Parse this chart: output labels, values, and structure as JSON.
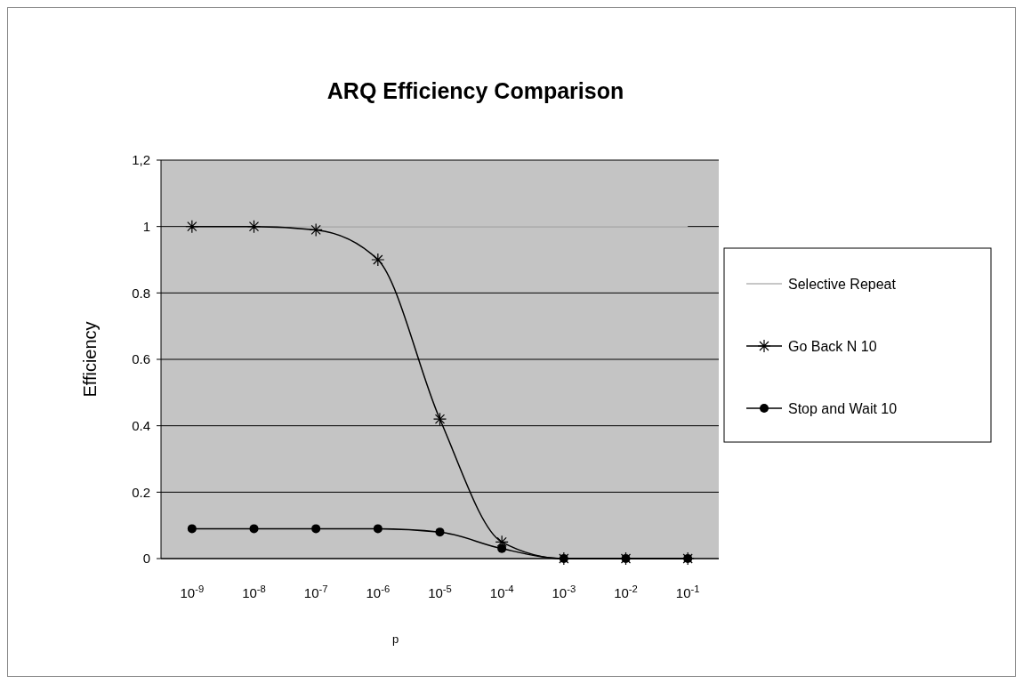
{
  "chart_data": {
    "type": "line",
    "title": "ARQ Efficiency Comparison",
    "xlabel": "p",
    "ylabel": "Efficiency",
    "categories": [
      "10$^{-9}$",
      "10$^{-8}$",
      "10$^{-7}$",
      "10$^{-6}$",
      "10$^{-5}$",
      "10$^{-4}$",
      "10$^{-3}$",
      "10$^{-2}$",
      "10$^{-1}$"
    ],
    "ylim": [
      0,
      1.2
    ],
    "yticks": [
      0,
      0.2,
      0.4,
      0.6,
      0.8,
      1,
      {
        "value": 1.2,
        "label": "1,2"
      }
    ],
    "grid": "y",
    "legend": "right",
    "series": [
      {
        "name": "Selective Repeat",
        "color": "#b4b4b4",
        "marker": "none",
        "values": [
          1,
          1,
          1,
          1,
          1,
          1,
          1,
          1,
          1
        ]
      },
      {
        "name": "Go Back N 10",
        "color": "#000000",
        "marker": "cross",
        "values": [
          1,
          1,
          0.99,
          0.9,
          0.42,
          0.05,
          0,
          0,
          0
        ]
      },
      {
        "name": "Stop and Wait 10",
        "color": "#000000",
        "marker": "circle",
        "values": [
          0.09,
          0.09,
          0.09,
          0.09,
          0.08,
          0.03,
          0,
          0,
          0
        ]
      }
    ]
  }
}
